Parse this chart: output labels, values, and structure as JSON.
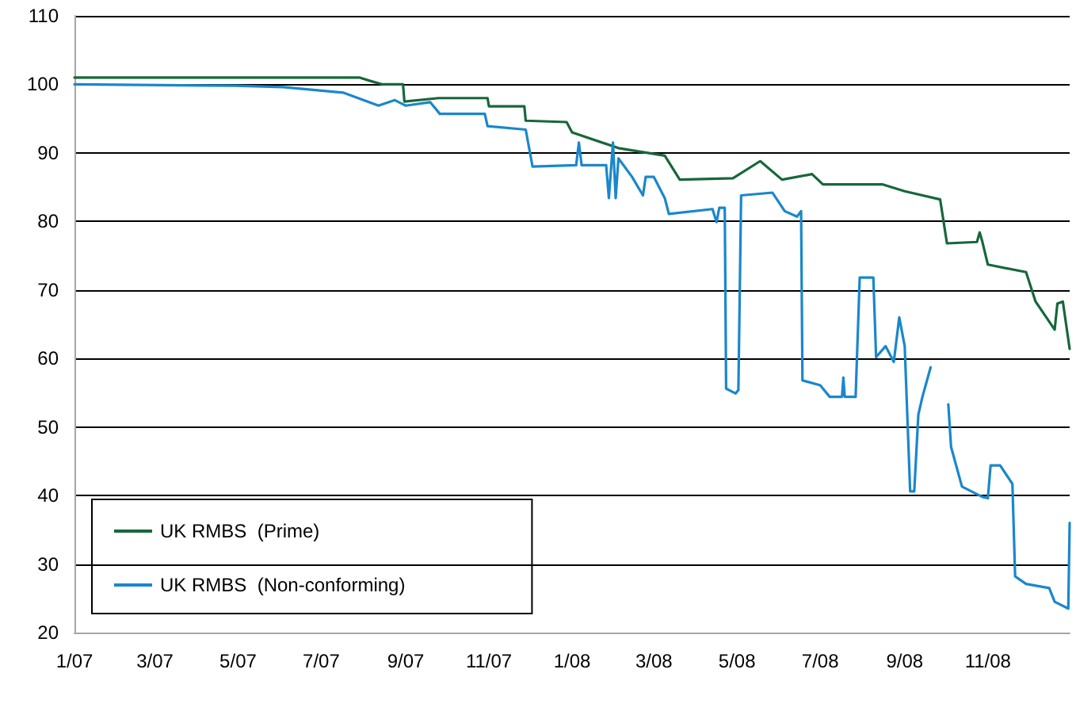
{
  "chart_data": {
    "type": "line",
    "marker": "none",
    "grid": "y",
    "legend": "bottom left",
    "xlim": [
      "2007-01-01",
      "2008-12-31"
    ],
    "xticks": [
      {
        "value": "2007-01-01",
        "label": "1/07"
      },
      {
        "value": "2007-03-01",
        "label": "3/07"
      },
      {
        "value": "2007-05-01",
        "label": "5/07"
      },
      {
        "value": "2007-07-01",
        "label": "7/07"
      },
      {
        "value": "2007-09-01",
        "label": "9/07"
      },
      {
        "value": "2007-11-01",
        "label": "11/07"
      },
      {
        "value": "2008-01-01",
        "label": "1/08"
      },
      {
        "value": "2008-03-01",
        "label": "3/08"
      },
      {
        "value": "2008-05-01",
        "label": "5/08"
      },
      {
        "value": "2008-07-01",
        "label": "7/08"
      },
      {
        "value": "2008-09-01",
        "label": "9/08"
      },
      {
        "value": "2008-11-01",
        "label": "11/08"
      }
    ],
    "ylim": [
      20,
      110
    ],
    "yticks": [
      20,
      30,
      40,
      50,
      60,
      70,
      80,
      90,
      100,
      110
    ],
    "series": [
      {
        "name": "UK RMBS  (Prime)",
        "color": "#17673a",
        "x": [
          "2007-01-01",
          "2007-07-29",
          "2007-08-06",
          "2007-08-15",
          "2007-08-30",
          "2007-08-31",
          "2007-09-25",
          "2007-10-31",
          "2007-11-01",
          "2007-11-27",
          "2007-11-28",
          "2007-12-28",
          "2008-01-01",
          "2008-02-04",
          "2008-03-09",
          "2008-03-20",
          "2008-04-28",
          "2008-05-18",
          "2008-06-03",
          "2008-06-25",
          "2008-07-03",
          "2008-08-16",
          "2008-09-01",
          "2008-09-27",
          "2008-10-02",
          "2008-10-24",
          "2008-10-26",
          "2008-10-28",
          "2008-11-01",
          "2008-11-29",
          "2008-12-06",
          "2008-12-20",
          "2008-12-22",
          "2008-12-26",
          "2008-12-31"
        ],
        "values": [
          101,
          101,
          100.5,
          100,
          100,
          97.5,
          98,
          98,
          96.8,
          96.8,
          94.7,
          94.5,
          93,
          90.7,
          89.6,
          86.1,
          86.3,
          88.8,
          86.1,
          86.9,
          85.4,
          85.4,
          84.4,
          83.2,
          76.8,
          77,
          78.4,
          77,
          73.7,
          72.6,
          68.3,
          64.2,
          68,
          68.3,
          61.4
        ]
      },
      {
        "name": "UK RMBS  (Non-conforming)",
        "color": "#1a87cc",
        "x": [
          "2007-01-01",
          "2007-04-29",
          "2007-06-03",
          "2007-07-17",
          "2007-08-12",
          "2007-08-24",
          "2007-09-01",
          "2007-09-19",
          "2007-09-26",
          "2007-10-29",
          "2007-10-31",
          "2007-11-28",
          "2007-12-03",
          "2008-01-04",
          "2008-01-06",
          "2008-01-08",
          "2008-01-26",
          "2008-01-28",
          "2008-01-31",
          "2008-02-02",
          "2008-02-04",
          "2008-02-14",
          "2008-02-22",
          "2008-02-24",
          "2008-03-01",
          "2008-03-09",
          "2008-03-12",
          "2008-04-13",
          "2008-04-16",
          "2008-04-18",
          "2008-04-22",
          "2008-04-23",
          "2008-04-30",
          "2008-05-02",
          "2008-05-04",
          "2008-05-27",
          "2008-06-05",
          "2008-06-14",
          "2008-06-17",
          "2008-06-18",
          "2008-07-01",
          "2008-07-08",
          "2008-07-17",
          "2008-07-18",
          "2008-07-19",
          "2008-07-27",
          "2008-07-30",
          "2008-08-09",
          "2008-08-11",
          "2008-08-18",
          "2008-08-24",
          "2008-08-28",
          "2008-09-01",
          "2008-09-05",
          "2008-09-08",
          "2008-09-11",
          "2008-09-14",
          "2008-09-20",
          "2008-09-27",
          "2008-10-03",
          "2008-10-05",
          "2008-10-13",
          "2008-10-28",
          "2008-11-01",
          "2008-11-03",
          "2008-11-10",
          "2008-11-19",
          "2008-11-21",
          "2008-11-29",
          "2008-12-16",
          "2008-12-20",
          "2008-12-30",
          "2008-12-31"
        ],
        "values": [
          100,
          99.8,
          99.6,
          98.8,
          96.9,
          97.7,
          96.9,
          97.4,
          95.7,
          95.7,
          93.9,
          93.4,
          88,
          88.2,
          91.5,
          88.2,
          88.2,
          83.4,
          91.5,
          83.4,
          89.2,
          86.5,
          83.8,
          86.5,
          86.5,
          83.4,
          81.1,
          81.8,
          79.9,
          82,
          82,
          55.6,
          54.9,
          55.4,
          83.8,
          84.2,
          81.5,
          80.7,
          81.5,
          56.8,
          56.1,
          54.4,
          54.4,
          57.2,
          54.4,
          54.4,
          71.8,
          71.8,
          60.2,
          61.8,
          59.5,
          66,
          61.8,
          40.6,
          40.6,
          51.8,
          54.4,
          58.7,
          null,
          53.3,
          47.1,
          41.3,
          39.8,
          39.6,
          44.4,
          44.4,
          41.7,
          28.2,
          27.1,
          26.5,
          24.5,
          23.5,
          36
        ]
      }
    ]
  }
}
